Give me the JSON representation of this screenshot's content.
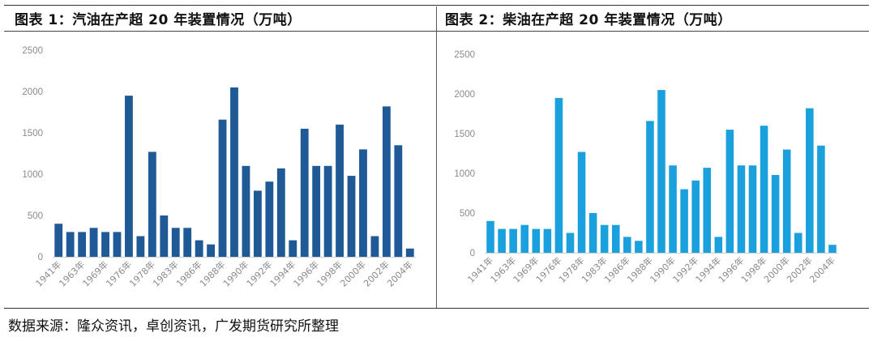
{
  "source_note": "数据来源：隆众资讯，卓创资讯，广发期货研究所整理",
  "chart_data": [
    {
      "type": "bar",
      "title": "图表 1：汽油在产超 20 年装置情况（万吨）",
      "color": "#1f5a96",
      "ylim": [
        0,
        2500
      ],
      "yticks": [
        0,
        500,
        1000,
        1500,
        2000,
        2500
      ],
      "xtick_labels": [
        "1941年",
        "1963年",
        "1969年",
        "1976年",
        "1978年",
        "1983年",
        "1986年",
        "1988年",
        "1990年",
        "1992年",
        "1994年",
        "1996年",
        "1998年",
        "2000年",
        "2002年",
        "2004年"
      ],
      "values": [
        400,
        300,
        300,
        350,
        300,
        300,
        1950,
        250,
        1270,
        500,
        350,
        350,
        200,
        150,
        1660,
        2050,
        1100,
        800,
        910,
        1070,
        200,
        1550,
        1100,
        1100,
        1600,
        980,
        1300,
        250,
        1820,
        1350,
        100
      ]
    },
    {
      "type": "bar",
      "title": "图表 2：柴油在产超 20 年装置情况（万吨）",
      "color": "#1aa0dc",
      "ylim": [
        0,
        2500
      ],
      "yticks": [
        0,
        500,
        1000,
        1500,
        2000,
        2500
      ],
      "xtick_labels": [
        "1941年",
        "1963年",
        "1969年",
        "1976年",
        "1978年",
        "1983年",
        "1986年",
        "1988年",
        "1990年",
        "1992年",
        "1994年",
        "1996年",
        "1998年",
        "2000年",
        "2002年",
        "2004年"
      ],
      "values": [
        400,
        300,
        300,
        350,
        300,
        300,
        1950,
        250,
        1270,
        500,
        350,
        350,
        200,
        150,
        1660,
        2050,
        1100,
        800,
        910,
        1070,
        200,
        1550,
        1100,
        1100,
        1600,
        980,
        1300,
        250,
        1820,
        1350,
        100
      ]
    }
  ]
}
